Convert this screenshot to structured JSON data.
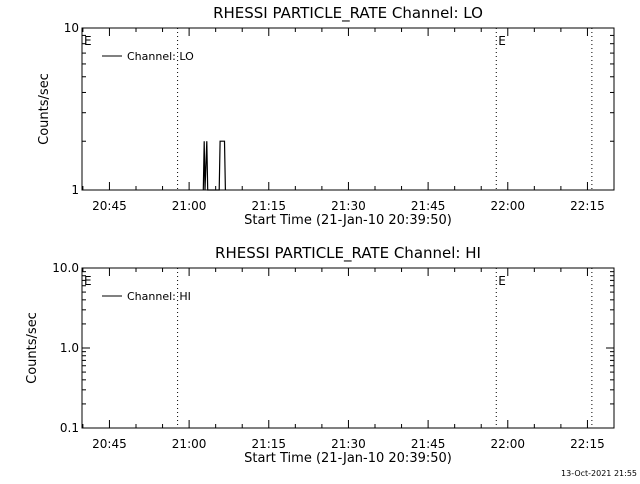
{
  "chart_data": [
    {
      "type": "line",
      "title": "RHESSI PARTICLE_RATE Channel: LO",
      "xlabel": "Start Time (21-Jan-10 20:39:50)",
      "ylabel": "Counts/sec",
      "yscale": "log",
      "ylim": [
        1,
        10
      ],
      "yticks": [
        {
          "value": 1,
          "label": "1"
        },
        {
          "value": 10,
          "label": "10"
        }
      ],
      "xlim": [
        "20:39:50",
        "22:20:00"
      ],
      "xticks": [
        "20:45",
        "21:00",
        "21:15",
        "21:30",
        "21:45",
        "22:00",
        "22:15"
      ],
      "markers": [
        {
          "x": "20:39:50",
          "label": "E"
        },
        {
          "x": "21:57:50",
          "label": "E"
        }
      ],
      "dotted_lines": [
        "20:57:50",
        "21:57:50",
        "22:15:50"
      ],
      "series": [
        {
          "name": "Channel: LO",
          "color": "#000000",
          "x": [
            "21:02:40",
            "21:02:50",
            "21:03:00",
            "21:03:20",
            "21:03:30",
            "21:05:40",
            "21:05:50",
            "21:06:40",
            "21:06:50"
          ],
          "y": [
            1,
            2,
            1,
            2,
            1,
            1,
            2,
            2,
            1
          ]
        }
      ],
      "legend": "top-left",
      "grid": false
    },
    {
      "type": "line",
      "title": "RHESSI PARTICLE_RATE Channel: HI",
      "xlabel": "Start Time (21-Jan-10 20:39:50)",
      "ylabel": "Counts/sec",
      "yscale": "log",
      "ylim": [
        0.1,
        10
      ],
      "yticks": [
        {
          "value": 0.1,
          "label": "0.1"
        },
        {
          "value": 1,
          "label": "1.0"
        },
        {
          "value": 10,
          "label": "10.0"
        }
      ],
      "xlim": [
        "20:39:50",
        "22:20:00"
      ],
      "xticks": [
        "20:45",
        "21:00",
        "21:15",
        "21:30",
        "21:45",
        "22:00",
        "22:15"
      ],
      "markers": [
        {
          "x": "20:39:50",
          "label": "E"
        },
        {
          "x": "21:57:50",
          "label": "E"
        }
      ],
      "dotted_lines": [
        "20:57:50",
        "21:57:50",
        "22:15:50"
      ],
      "series": [
        {
          "name": "Channel: HI",
          "color": "#000000",
          "x": [],
          "y": []
        }
      ],
      "legend": "top-left",
      "grid": false
    }
  ],
  "footer": {
    "timestamp": "13-Oct-2021 21:55"
  }
}
